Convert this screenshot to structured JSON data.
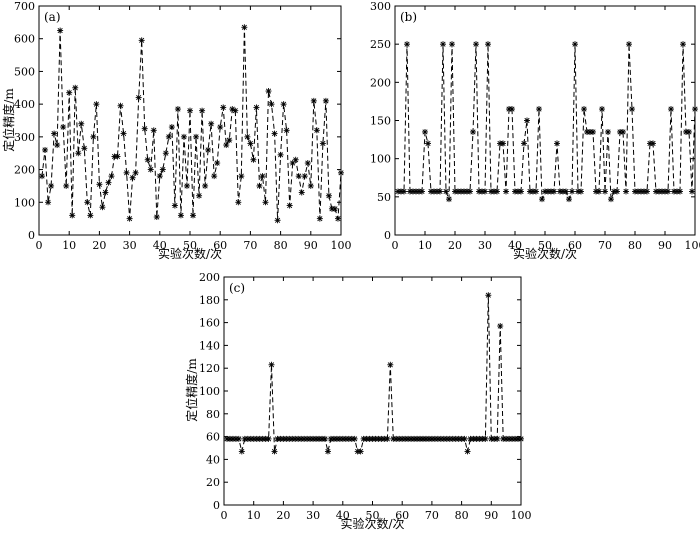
{
  "chart_data": [
    {
      "id": "a",
      "type": "line",
      "panel_label": "(a)",
      "xlabel": "实验次数/次",
      "ylabel": "定位精度/m",
      "xlim": [
        0,
        100
      ],
      "ylim": [
        0,
        700
      ],
      "xticks": [
        0,
        10,
        20,
        30,
        40,
        50,
        60,
        70,
        80,
        90,
        100
      ],
      "yticks": [
        0,
        100,
        200,
        300,
        400,
        500,
        600,
        700
      ],
      "grid": false,
      "marker": "asterisk",
      "line_style": "dash-dot",
      "series": [
        {
          "x": [
            1,
            2,
            3,
            4,
            5,
            6,
            7,
            8,
            9,
            10,
            11,
            12,
            13,
            14,
            15,
            16,
            17,
            18,
            19,
            20,
            21,
            22,
            23,
            24,
            25,
            26,
            27,
            28,
            29,
            30,
            31,
            32,
            33,
            34,
            35,
            36,
            37,
            38,
            39,
            40,
            41,
            42,
            43,
            44,
            45,
            46,
            47,
            48,
            49,
            50,
            51,
            52,
            53,
            54,
            55,
            56,
            57,
            58,
            59,
            60,
            61,
            62,
            63,
            64,
            65,
            66,
            67,
            68,
            69,
            70,
            71,
            72,
            73,
            74,
            75,
            76,
            77,
            78,
            79,
            80,
            81,
            82,
            83,
            84,
            85,
            86,
            87,
            88,
            89,
            90,
            91,
            92,
            93,
            94,
            95,
            96,
            97,
            98,
            99,
            100
          ],
          "y": [
            180,
            260,
            100,
            150,
            310,
            275,
            625,
            330,
            150,
            435,
            60,
            450,
            250,
            340,
            265,
            100,
            60,
            300,
            400,
            155,
            85,
            130,
            160,
            180,
            240,
            240,
            395,
            310,
            190,
            50,
            175,
            190,
            420,
            595,
            325,
            230,
            200,
            320,
            55,
            180,
            200,
            250,
            300,
            330,
            90,
            385,
            60,
            300,
            150,
            380,
            60,
            300,
            120,
            380,
            150,
            260,
            340,
            180,
            220,
            330,
            390,
            275,
            290,
            385,
            380,
            100,
            180,
            635,
            300,
            280,
            230,
            390,
            150,
            180,
            100,
            440,
            400,
            310,
            45,
            245,
            400,
            320,
            90,
            220,
            230,
            180,
            130,
            180,
            220,
            150,
            410,
            320,
            50,
            280,
            410,
            120,
            80,
            80,
            50,
            190
          ]
        }
      ]
    },
    {
      "id": "b",
      "type": "line",
      "panel_label": "(b)",
      "xlabel": "实验次数/次",
      "ylabel": "",
      "xlim": [
        0,
        100
      ],
      "ylim": [
        0,
        300
      ],
      "xticks": [
        0,
        10,
        20,
        30,
        40,
        50,
        60,
        70,
        80,
        90,
        100
      ],
      "yticks": [
        0,
        50,
        100,
        150,
        200,
        250,
        300
      ],
      "grid": false,
      "marker": "asterisk",
      "line_style": "dash-dot",
      "series": [
        {
          "x": [
            1,
            2,
            3,
            4,
            5,
            6,
            7,
            8,
            9,
            10,
            11,
            12,
            13,
            14,
            15,
            16,
            17,
            18,
            19,
            20,
            21,
            22,
            23,
            24,
            25,
            26,
            27,
            28,
            29,
            30,
            31,
            32,
            33,
            34,
            35,
            36,
            37,
            38,
            39,
            40,
            41,
            42,
            43,
            44,
            45,
            46,
            47,
            48,
            49,
            50,
            51,
            52,
            53,
            54,
            55,
            56,
            57,
            58,
            59,
            60,
            61,
            62,
            63,
            64,
            65,
            66,
            67,
            68,
            69,
            70,
            71,
            72,
            73,
            74,
            75,
            76,
            77,
            78,
            79,
            80,
            81,
            82,
            83,
            84,
            85,
            86,
            87,
            88,
            89,
            90,
            91,
            92,
            93,
            94,
            95,
            96,
            97,
            98,
            99,
            100
          ],
          "y": [
            57,
            57,
            57,
            250,
            57,
            57,
            57,
            57,
            57,
            135,
            120,
            57,
            57,
            57,
            57,
            250,
            57,
            47,
            250,
            57,
            57,
            57,
            57,
            57,
            57,
            135,
            250,
            57,
            57,
            57,
            250,
            57,
            57,
            57,
            120,
            120,
            57,
            165,
            165,
            57,
            57,
            57,
            120,
            150,
            57,
            57,
            57,
            165,
            47,
            57,
            57,
            57,
            57,
            120,
            57,
            57,
            57,
            47,
            57,
            250,
            57,
            57,
            165,
            135,
            135,
            135,
            57,
            57,
            165,
            57,
            135,
            47,
            57,
            57,
            135,
            135,
            57,
            250,
            165,
            57,
            57,
            57,
            57,
            57,
            120,
            120,
            57,
            57,
            57,
            57,
            57,
            165,
            57,
            57,
            57,
            250,
            135,
            135,
            57,
            165
          ]
        }
      ]
    },
    {
      "id": "c",
      "type": "line",
      "panel_label": "(c)",
      "xlabel": "实验次数/次",
      "ylabel": "定位精度/m",
      "xlim": [
        0,
        100
      ],
      "ylim": [
        0,
        200
      ],
      "xticks": [
        0,
        10,
        20,
        30,
        40,
        50,
        60,
        70,
        80,
        90,
        100
      ],
      "yticks": [
        0,
        20,
        40,
        60,
        80,
        100,
        120,
        140,
        160,
        180,
        200
      ],
      "grid": false,
      "marker": "asterisk",
      "line_style": "dash-dot",
      "series": [
        {
          "x": [
            1,
            2,
            3,
            4,
            5,
            6,
            7,
            8,
            9,
            10,
            11,
            12,
            13,
            14,
            15,
            16,
            17,
            18,
            19,
            20,
            21,
            22,
            23,
            24,
            25,
            26,
            27,
            28,
            29,
            30,
            31,
            32,
            33,
            34,
            35,
            36,
            37,
            38,
            39,
            40,
            41,
            42,
            43,
            44,
            45,
            46,
            47,
            48,
            49,
            50,
            51,
            52,
            53,
            54,
            55,
            56,
            57,
            58,
            59,
            60,
            61,
            62,
            63,
            64,
            65,
            66,
            67,
            68,
            69,
            70,
            71,
            72,
            73,
            74,
            75,
            76,
            77,
            78,
            79,
            80,
            81,
            82,
            83,
            84,
            85,
            86,
            87,
            88,
            89,
            90,
            91,
            92,
            93,
            94,
            95,
            96,
            97,
            98,
            99,
            100
          ],
          "y": [
            58,
            58,
            58,
            58,
            58,
            47,
            58,
            58,
            58,
            58,
            58,
            58,
            58,
            58,
            58,
            123,
            47,
            58,
            58,
            58,
            58,
            58,
            58,
            58,
            58,
            58,
            58,
            58,
            58,
            58,
            58,
            58,
            58,
            58,
            47,
            58,
            58,
            58,
            58,
            58,
            58,
            58,
            58,
            58,
            47,
            47,
            58,
            58,
            58,
            58,
            58,
            58,
            58,
            58,
            58,
            123,
            58,
            58,
            58,
            58,
            58,
            58,
            58,
            58,
            58,
            58,
            58,
            58,
            58,
            58,
            58,
            58,
            58,
            58,
            58,
            58,
            58,
            58,
            58,
            58,
            58,
            47,
            58,
            58,
            58,
            58,
            58,
            58,
            184,
            58,
            58,
            58,
            157,
            58,
            58,
            58,
            58,
            58,
            58,
            58
          ]
        }
      ]
    }
  ]
}
